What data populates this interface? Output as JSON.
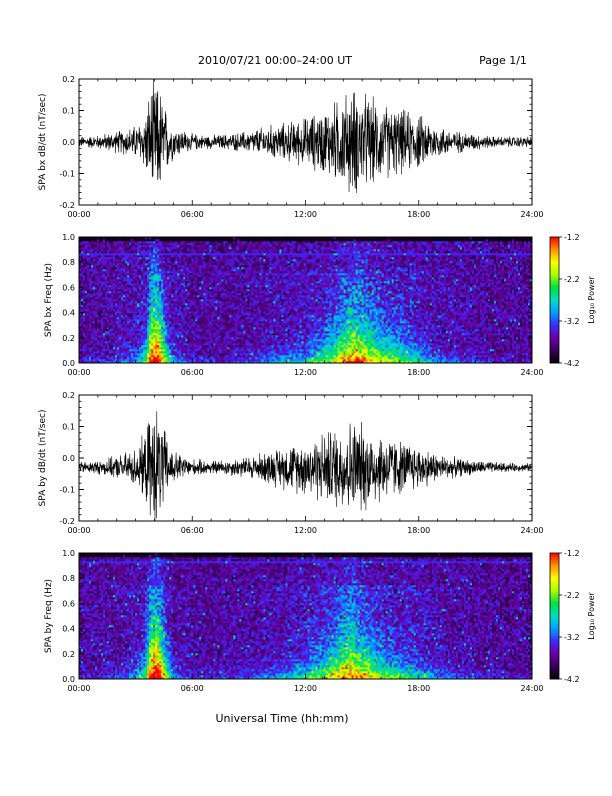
{
  "header": {
    "date_range": "2010/07/21   00:00–24:00 UT",
    "page": "Page 1/1"
  },
  "x_axis": {
    "label": "Universal Time (hh:mm)",
    "ticks": [
      "00:00",
      "06:00",
      "12:00",
      "18:00",
      "24:00"
    ],
    "range_hours": [
      0,
      24
    ]
  },
  "colorbar": {
    "label": "Log₁₀ Power",
    "ticks": [
      "-1.2",
      "-2.2",
      "-3.2",
      "-4.2"
    ],
    "range": [
      -4.2,
      -1.2
    ],
    "colors": [
      "#000000",
      "#3a0058",
      "#6a00a8",
      "#3a2cff",
      "#00a0ff",
      "#00e0c0",
      "#00e040",
      "#a8ff00",
      "#ffff00",
      "#ff9000",
      "#ff0000"
    ]
  },
  "chart_data": [
    {
      "type": "line",
      "ylabel": "SPA bx dB/dt (nT/sec)",
      "ylim": [
        -0.2,
        0.2
      ],
      "yticks": [
        "0.2",
        "0.1",
        "0.0",
        "-0.1",
        "-0.2"
      ],
      "baseline": 0.0,
      "color": "#000000",
      "envelope": {
        "hours": [
          0,
          1,
          2,
          3,
          3.5,
          3.8,
          4.0,
          4.3,
          4.6,
          5,
          6,
          7,
          8,
          9,
          10,
          11,
          12,
          13,
          14,
          14.5,
          15,
          16,
          17,
          18,
          19,
          20,
          21,
          22,
          23,
          24
        ],
        "amplitude": [
          0.02,
          0.025,
          0.04,
          0.06,
          0.1,
          0.2,
          0.22,
          0.2,
          0.12,
          0.06,
          0.03,
          0.025,
          0.03,
          0.04,
          0.06,
          0.07,
          0.09,
          0.12,
          0.17,
          0.2,
          0.18,
          0.14,
          0.12,
          0.1,
          0.06,
          0.04,
          0.03,
          0.02,
          0.02,
          0.02
        ]
      }
    },
    {
      "type": "heatmap",
      "ylabel": "SPA bx Freq (Hz)",
      "ylim": [
        0,
        1.0
      ],
      "yticks": [
        "1.0",
        "0.8",
        "0.6",
        "0.4",
        "0.2",
        "0.0"
      ],
      "zlim": [
        -4.2,
        -1.2
      ],
      "hours": [
        0,
        1,
        2,
        3,
        3.5,
        3.8,
        4.0,
        4.3,
        4.6,
        5,
        6,
        7,
        8,
        9,
        10,
        11,
        12,
        13,
        14,
        14.5,
        15,
        16,
        17,
        18,
        19,
        20,
        21,
        22,
        23,
        24
      ],
      "activity": [
        0.1,
        0.12,
        0.2,
        0.3,
        0.5,
        0.9,
        1.0,
        0.9,
        0.6,
        0.3,
        0.15,
        0.12,
        0.15,
        0.2,
        0.28,
        0.32,
        0.4,
        0.55,
        0.75,
        0.85,
        0.8,
        0.65,
        0.55,
        0.45,
        0.3,
        0.22,
        0.15,
        0.1,
        0.08,
        0.08
      ],
      "line_freq_hz": 0.87
    },
    {
      "type": "line",
      "ylabel": "SPA by dB/dt (nT/sec)",
      "ylim": [
        -0.2,
        0.2
      ],
      "yticks": [
        "0.2",
        "0.1",
        "0.0",
        "-0.1",
        "-0.2"
      ],
      "baseline": -0.03,
      "color": "#000000",
      "envelope": {
        "hours": [
          0,
          1,
          2,
          3,
          3.5,
          3.8,
          4.0,
          4.3,
          4.6,
          5,
          6,
          7,
          8,
          9,
          10,
          11,
          12,
          13,
          14,
          14.5,
          15,
          16,
          17,
          18,
          19,
          20,
          21,
          22,
          23,
          24
        ],
        "amplitude": [
          0.02,
          0.025,
          0.04,
          0.07,
          0.12,
          0.2,
          0.22,
          0.2,
          0.12,
          0.06,
          0.03,
          0.025,
          0.03,
          0.04,
          0.06,
          0.08,
          0.1,
          0.13,
          0.16,
          0.18,
          0.16,
          0.13,
          0.1,
          0.08,
          0.05,
          0.035,
          0.025,
          0.02,
          0.015,
          0.015
        ]
      }
    },
    {
      "type": "heatmap",
      "ylabel": "SPA by Freq (Hz)",
      "ylim": [
        0,
        1.0
      ],
      "yticks": [
        "1.0",
        "0.8",
        "0.6",
        "0.4",
        "0.2",
        "0.0"
      ],
      "zlim": [
        -4.2,
        -1.2
      ],
      "hours": [
        0,
        1,
        2,
        3,
        3.5,
        3.8,
        4.0,
        4.3,
        4.6,
        5,
        6,
        7,
        8,
        9,
        10,
        11,
        12,
        13,
        14,
        14.5,
        15,
        16,
        17,
        18,
        19,
        20,
        21,
        22,
        23,
        24
      ],
      "activity": [
        0.1,
        0.12,
        0.2,
        0.3,
        0.55,
        0.95,
        1.0,
        0.95,
        0.65,
        0.3,
        0.15,
        0.12,
        0.15,
        0.2,
        0.28,
        0.35,
        0.45,
        0.6,
        0.8,
        0.85,
        0.75,
        0.6,
        0.5,
        0.42,
        0.3,
        0.22,
        0.15,
        0.1,
        0.08,
        0.08
      ],
      "line_freq_hz": 0.93
    }
  ]
}
